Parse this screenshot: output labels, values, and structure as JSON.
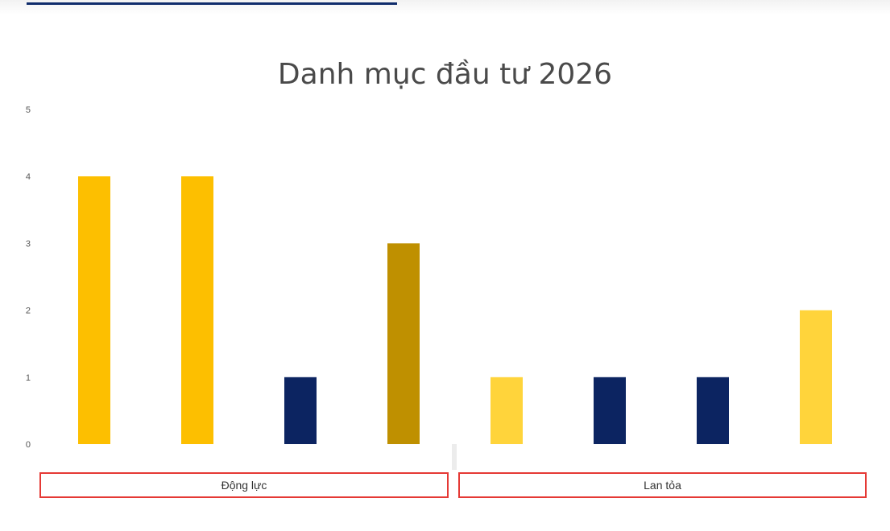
{
  "chart_data": {
    "type": "bar",
    "title": "Danh mục đầu tư 2026",
    "xlabel": "",
    "ylabel": "",
    "ylim": [
      0,
      5
    ],
    "y_ticks": [
      "0",
      "1",
      "2",
      "3",
      "4",
      "5"
    ],
    "grid": false,
    "values": [
      4,
      4,
      1,
      3,
      1,
      1,
      1,
      2
    ],
    "colors": [
      "#fdbf00",
      "#fdbf00",
      "#0c2461",
      "#bf9000",
      "#ffd43b",
      "#0c2461",
      "#0c2461",
      "#ffd43b"
    ],
    "groups": [
      {
        "label": "Động lực",
        "bar_count": 4
      },
      {
        "label": "Lan tỏa",
        "bar_count": 4
      }
    ]
  }
}
